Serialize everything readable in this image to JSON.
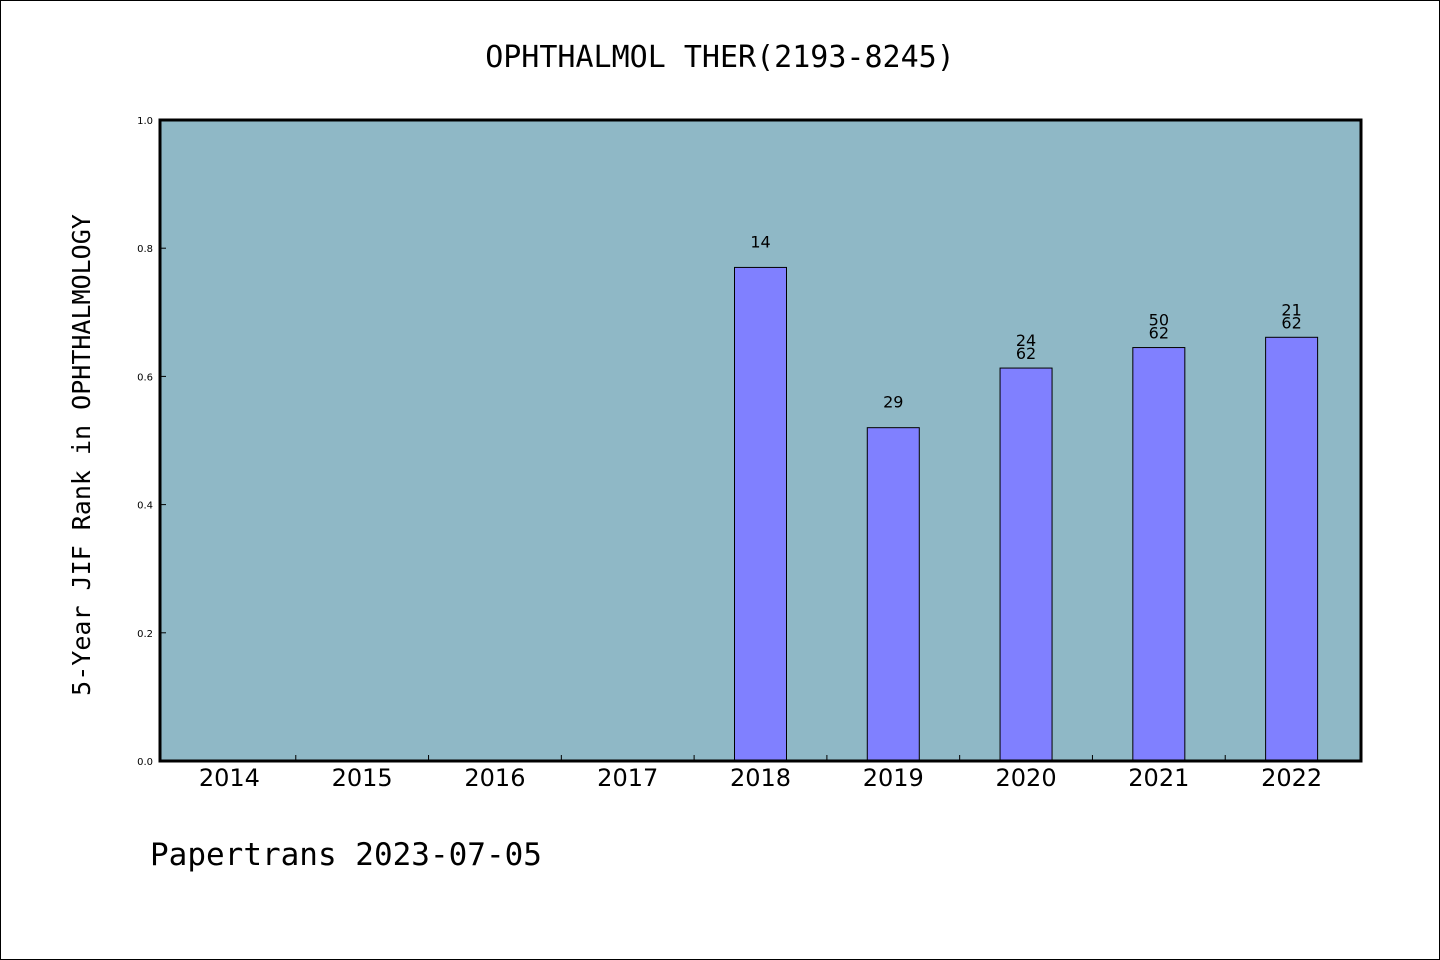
{
  "chart_data": {
    "type": "bar",
    "title": "OPHTHALMOL THER(2193-8245)",
    "xlabel": "",
    "ylabel": "5-Year JIF Rank in OPHTHALMOLOGY",
    "categories": [
      "2014",
      "2015",
      "2016",
      "2017",
      "2018",
      "2019",
      "2020",
      "2021",
      "2022"
    ],
    "values": [
      null,
      null,
      null,
      null,
      0.77,
      0.52,
      0.613,
      0.645,
      0.661
    ],
    "bar_labels": [
      [],
      [],
      [],
      [],
      [
        "14"
      ],
      [
        "29"
      ],
      [
        "24",
        "62"
      ],
      [
        "50",
        "62"
      ],
      [
        "21",
        "62"
      ]
    ],
    "ylim": [
      0.0,
      1.0
    ],
    "yticks": [
      "0.0",
      "0.2",
      "0.4",
      "0.6",
      "0.8",
      "1.0"
    ],
    "grid": false,
    "legend": "none",
    "colors": {
      "plot_background": "#8fb8c6",
      "bar_fill": "#8080ff",
      "bar_edge": "#000000"
    }
  },
  "footer": {
    "text": "Papertrans 2023-07-05"
  }
}
